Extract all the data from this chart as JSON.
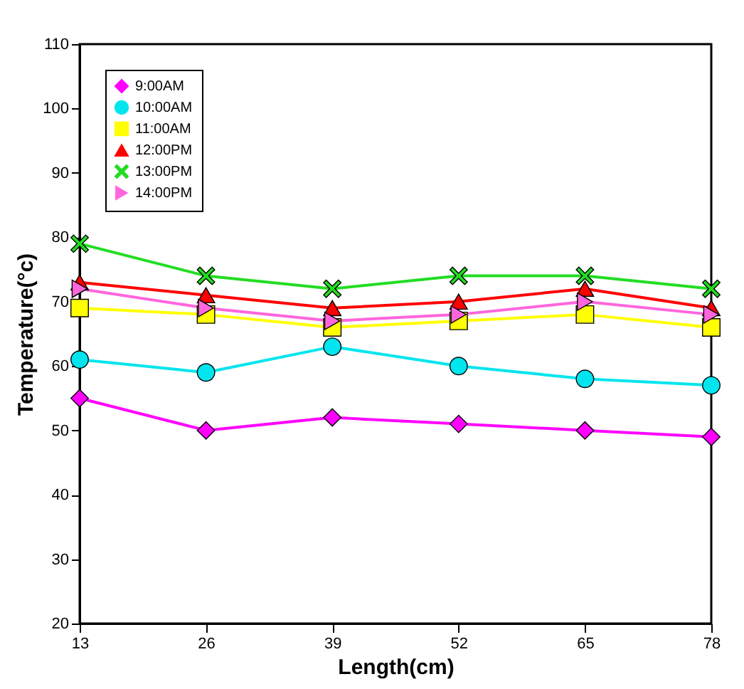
{
  "chart_data": {
    "type": "line",
    "xlabel": "Length(cm)",
    "ylabel": "Temperature(°c)",
    "x": [
      13,
      26,
      39,
      52,
      65,
      78
    ],
    "xlim": [
      13,
      78
    ],
    "xticks": [
      13,
      26,
      39,
      52,
      65,
      78
    ],
    "ylim": [
      20,
      110
    ],
    "yticks": [
      20,
      30,
      40,
      50,
      60,
      70,
      80,
      90,
      100,
      110
    ],
    "grid": false,
    "legend": "top left",
    "line_style": "solid",
    "series": [
      {
        "name": "9:00AM",
        "color": "#ff00ff",
        "marker": "diamond",
        "values": [
          55,
          50,
          52,
          51,
          50,
          49
        ]
      },
      {
        "name": "10:00AM",
        "color": "#00e5ee",
        "marker": "circle",
        "values": [
          61,
          59,
          63,
          60,
          58,
          57
        ]
      },
      {
        "name": "11:00AM",
        "color": "#ffff00",
        "marker": "square",
        "values": [
          69,
          68,
          66,
          67,
          68,
          66
        ]
      },
      {
        "name": "12:00PM",
        "color": "#ff0000",
        "marker": "triangle",
        "values": [
          73,
          71,
          69,
          70,
          72,
          69
        ]
      },
      {
        "name": "13:00PM",
        "color": "#22dd22",
        "marker": "cross",
        "values": [
          79,
          74,
          72,
          74,
          74,
          72
        ]
      },
      {
        "name": "14:00PM",
        "color": "#ff66dd",
        "marker": "triangle-right",
        "values": [
          72,
          69,
          67,
          68,
          70,
          68
        ]
      }
    ]
  }
}
